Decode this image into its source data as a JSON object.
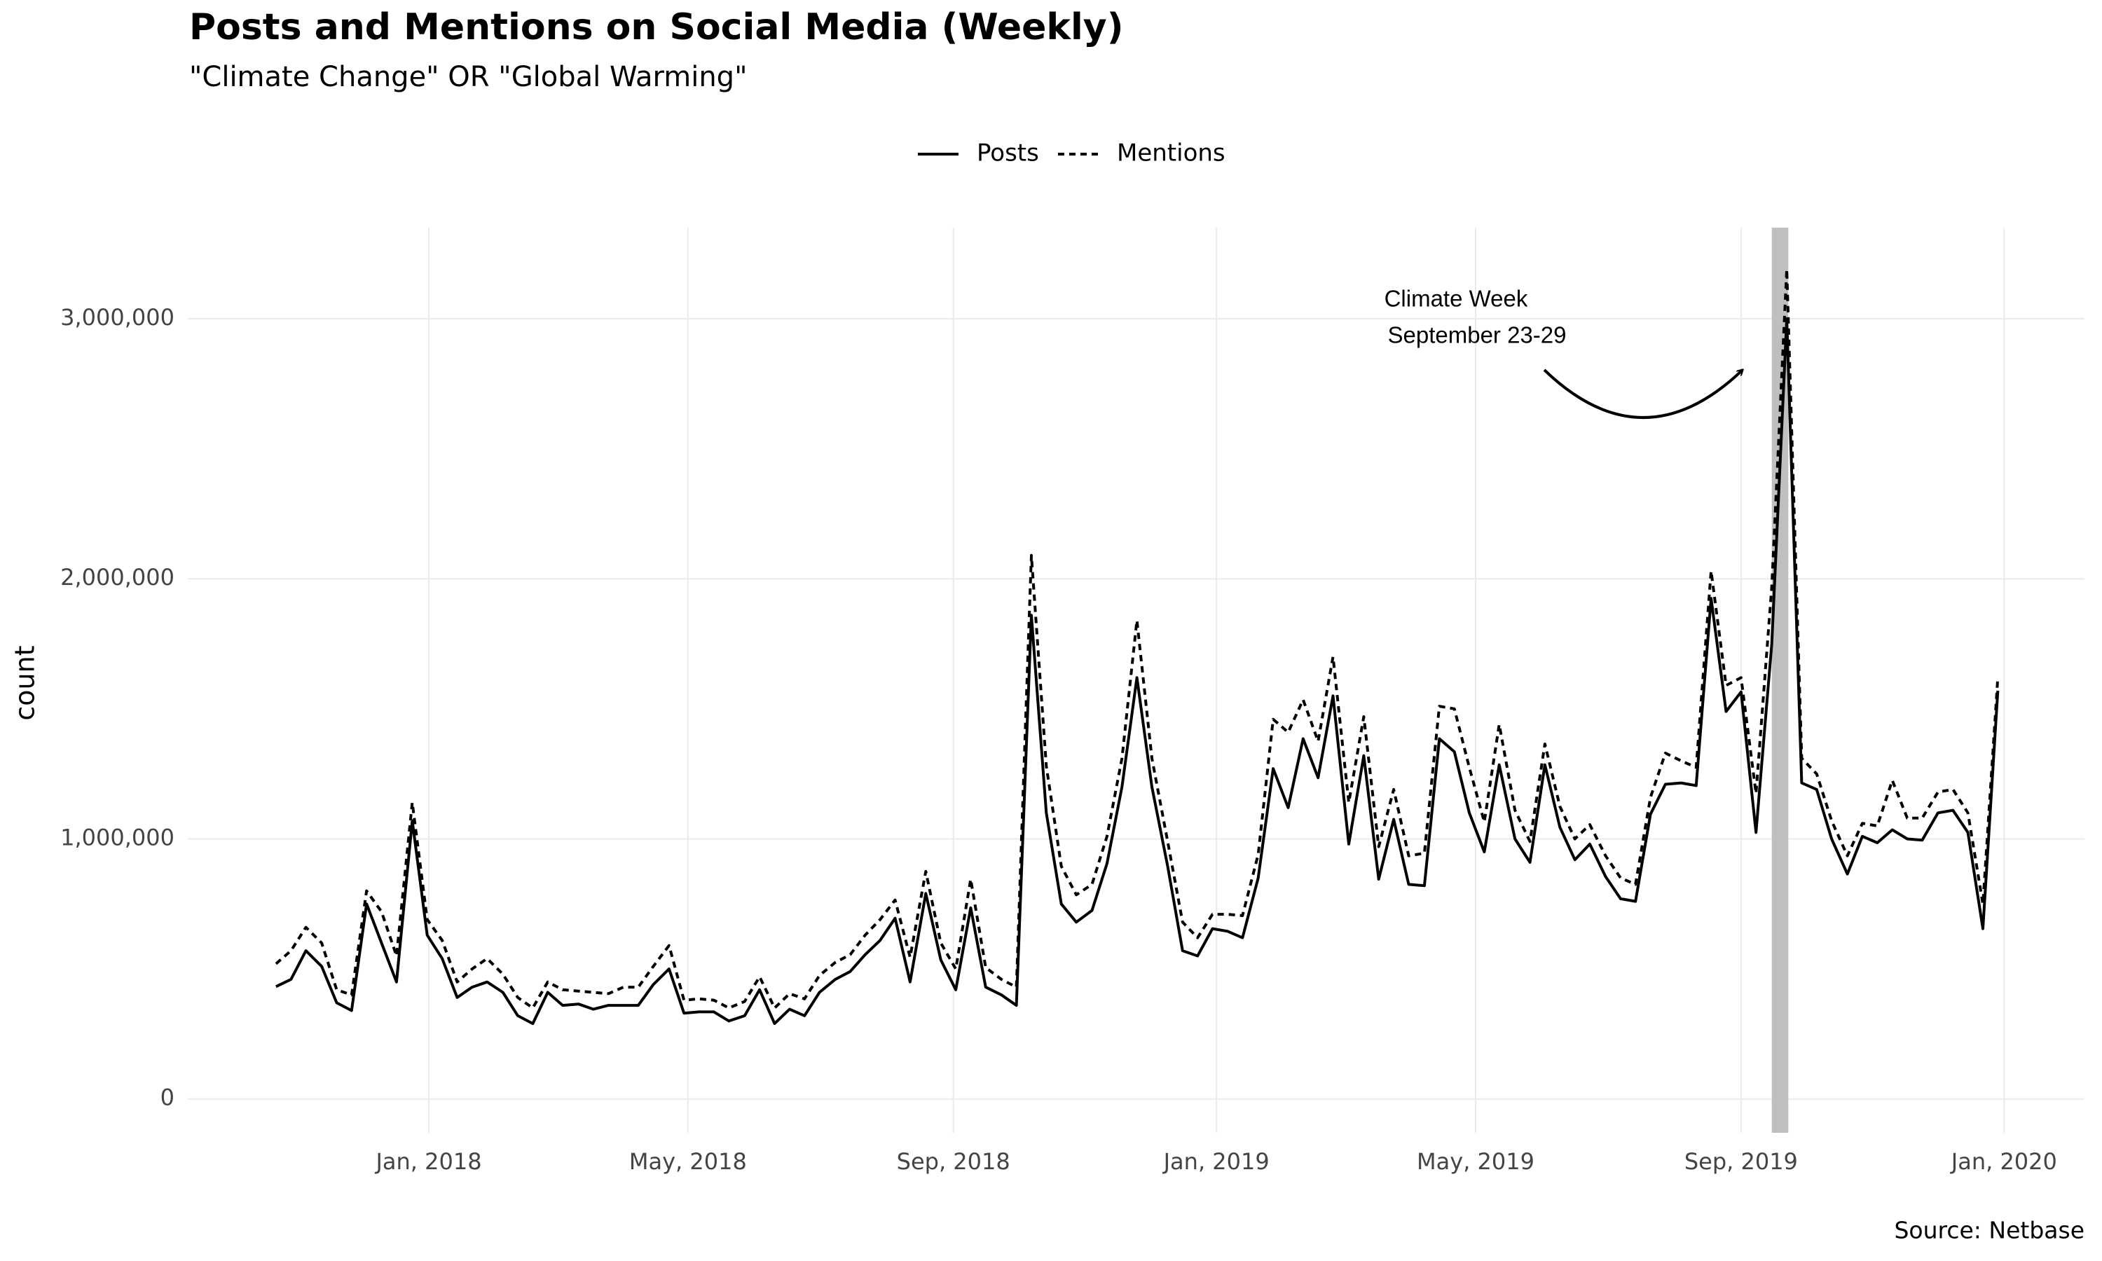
{
  "chart_data": {
    "type": "line",
    "title": "Posts and Mentions on Social Media (Weekly)",
    "subtitle": "\"Climate Change\" OR \"Global Warming\"",
    "ylabel": "count",
    "source": "Source: Netbase",
    "annotation": [
      "Climate Week",
      "September 23-29"
    ],
    "highlight": {
      "xlim": [
        2019.705,
        2019.726
      ],
      "color": "#bfbfbf"
    },
    "legend": "top",
    "grid": true,
    "x": [
      2017.806,
      2017.825,
      2017.844,
      2017.864,
      2017.883,
      2017.902,
      2017.921,
      2017.94,
      2017.959,
      2017.979,
      2017.998,
      2018.017,
      2018.036,
      2018.055,
      2018.074,
      2018.094,
      2018.113,
      2018.132,
      2018.151,
      2018.17,
      2018.19,
      2018.209,
      2018.228,
      2018.247,
      2018.266,
      2018.285,
      2018.305,
      2018.324,
      2018.343,
      2018.362,
      2018.381,
      2018.401,
      2018.42,
      2018.439,
      2018.458,
      2018.477,
      2018.496,
      2018.516,
      2018.535,
      2018.554,
      2018.573,
      2018.592,
      2018.611,
      2018.631,
      2018.65,
      2018.669,
      2018.688,
      2018.707,
      2018.727,
      2018.746,
      2018.765,
      2018.784,
      2018.803,
      2018.822,
      2018.842,
      2018.861,
      2018.88,
      2018.899,
      2018.918,
      2018.938,
      2018.957,
      2018.976,
      2018.995,
      2019.014,
      2019.033,
      2019.053,
      2019.072,
      2019.091,
      2019.11,
      2019.129,
      2019.148,
      2019.168,
      2019.187,
      2019.206,
      2019.225,
      2019.244,
      2019.264,
      2019.283,
      2019.302,
      2019.321,
      2019.34,
      2019.359,
      2019.379,
      2019.398,
      2019.417,
      2019.436,
      2019.455,
      2019.474,
      2019.494,
      2019.513,
      2019.532,
      2019.551,
      2019.57,
      2019.59,
      2019.609,
      2019.628,
      2019.647,
      2019.666,
      2019.685,
      2019.705,
      2019.724,
      2019.743,
      2019.762,
      2019.781,
      2019.801,
      2019.82,
      2019.839,
      2019.858,
      2019.877,
      2019.896,
      2019.916,
      2019.935,
      2019.954,
      2019.973,
      2019.992
    ],
    "series": [
      {
        "name": "Posts",
        "color": "#000000",
        "linestyle": "solid",
        "values": [
          432000,
          460000,
          570000,
          510000,
          370000,
          340000,
          750000,
          600000,
          450000,
          1070000,
          630000,
          540000,
          390000,
          430000,
          450000,
          410000,
          320000,
          290000,
          410000,
          360000,
          365000,
          345000,
          360000,
          360000,
          360000,
          440000,
          500000,
          330000,
          335000,
          335000,
          300000,
          320000,
          420000,
          290000,
          345000,
          320000,
          410000,
          460000,
          490000,
          555000,
          610000,
          695000,
          450000,
          790000,
          535000,
          420000,
          735000,
          430000,
          400000,
          360000,
          1860000,
          1100000,
          750000,
          680000,
          725000,
          905000,
          1200000,
          1620000,
          1200000,
          895000,
          570000,
          550000,
          655000,
          645000,
          620000,
          850000,
          1270000,
          1120000,
          1385000,
          1235000,
          1550000,
          980000,
          1320000,
          845000,
          1075000,
          825000,
          820000,
          1385000,
          1335000,
          1100000,
          950000,
          1285000,
          1000000,
          910000,
          1285000,
          1045000,
          920000,
          980000,
          855000,
          770000,
          760000,
          1095000,
          1210000,
          1215000,
          1205000,
          1925000,
          1490000,
          1565000,
          1025000,
          1750000,
          3000000,
          1215000,
          1190000,
          1000000,
          865000,
          1010000,
          985000,
          1035000,
          1000000,
          995000,
          1100000,
          1110000,
          1025000,
          655000,
          1570000
        ]
      },
      {
        "name": "Mentions",
        "color": "#000000",
        "linestyle": "dotted",
        "values": [
          520000,
          570000,
          660000,
          600000,
          420000,
          400000,
          800000,
          720000,
          550000,
          1140000,
          690000,
          610000,
          450000,
          500000,
          540000,
          480000,
          390000,
          350000,
          450000,
          420000,
          415000,
          410000,
          405000,
          430000,
          430000,
          510000,
          590000,
          380000,
          385000,
          380000,
          350000,
          375000,
          470000,
          350000,
          405000,
          385000,
          475000,
          525000,
          555000,
          630000,
          690000,
          765000,
          545000,
          875000,
          600000,
          500000,
          845000,
          505000,
          460000,
          430000,
          2090000,
          1280000,
          895000,
          785000,
          825000,
          1010000,
          1310000,
          1840000,
          1310000,
          990000,
          680000,
          620000,
          710000,
          710000,
          705000,
          940000,
          1460000,
          1410000,
          1535000,
          1375000,
          1700000,
          1140000,
          1470000,
          970000,
          1190000,
          935000,
          945000,
          1510000,
          1500000,
          1275000,
          1065000,
          1440000,
          1110000,
          990000,
          1365000,
          1125000,
          1000000,
          1055000,
          935000,
          850000,
          825000,
          1160000,
          1330000,
          1300000,
          1275000,
          2030000,
          1590000,
          1620000,
          1175000,
          1970000,
          3190000,
          1310000,
          1250000,
          1070000,
          935000,
          1060000,
          1050000,
          1225000,
          1080000,
          1080000,
          1180000,
          1190000,
          1100000,
          750000,
          1620000
        ]
      }
    ],
    "xlim": [
      2017.694,
      2020.102
    ],
    "xticks": [
      {
        "value": 2018.0,
        "label": "Jan, 2018"
      },
      {
        "value": 2018.329,
        "label": "May, 2018"
      },
      {
        "value": 2018.666,
        "label": "Sep, 2018"
      },
      {
        "value": 2019.0,
        "label": "Jan, 2019"
      },
      {
        "value": 2019.329,
        "label": "May, 2019"
      },
      {
        "value": 2019.666,
        "label": "Sep, 2019"
      },
      {
        "value": 2020.0,
        "label": "Jan, 2020"
      }
    ],
    "ylim": [
      -130000,
      3350000
    ],
    "yticks": [
      0,
      {
        "value": 1000000,
        "label": "1,000,000"
      },
      {
        "value": 2000000,
        "label": "2,000,000"
      },
      {
        "value": 3000000,
        "label": "3,000,000"
      }
    ]
  }
}
